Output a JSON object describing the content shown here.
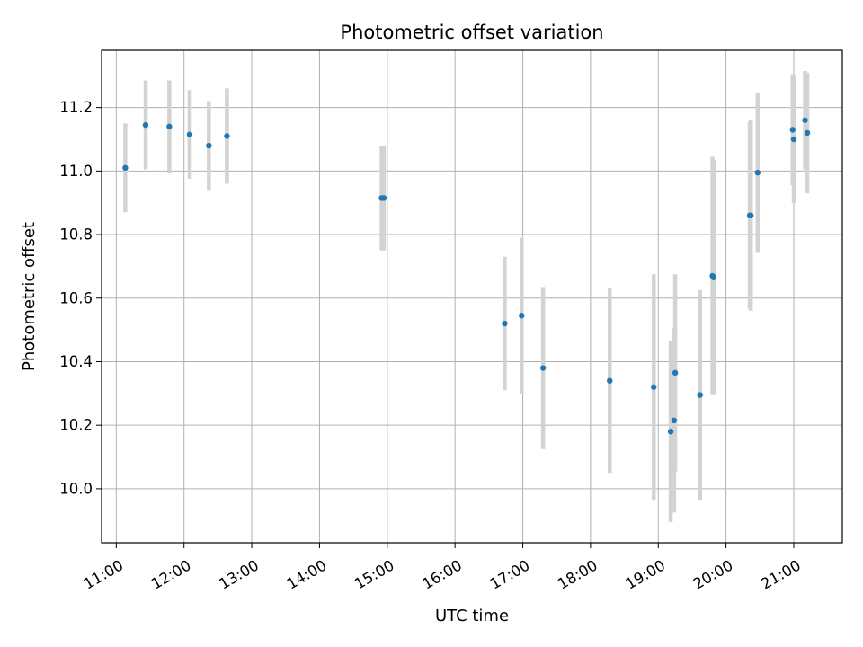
{
  "chart_data": {
    "type": "scatter",
    "title": "Photometric offset variation",
    "xlabel": "UTC time",
    "ylabel": "Photometric offset",
    "xlim": [
      "10:47",
      "21:43"
    ],
    "ylim": [
      9.83,
      11.38
    ],
    "x_ticks": [
      "11:00",
      "12:00",
      "13:00",
      "14:00",
      "15:00",
      "16:00",
      "17:00",
      "18:00",
      "19:00",
      "20:00",
      "21:00"
    ],
    "y_ticks": [
      "10.0",
      "10.2",
      "10.4",
      "10.6",
      "10.8",
      "11.0",
      "11.2"
    ],
    "grid": true,
    "marker_color": "#1f77b4",
    "errorbar_color": "#d3d3d3",
    "points": [
      {
        "x": "11:08",
        "y": 11.01,
        "err": 0.14
      },
      {
        "x": "11:26",
        "y": 11.145,
        "err": 0.14
      },
      {
        "x": "11:47",
        "y": 11.14,
        "err": 0.145
      },
      {
        "x": "12:05",
        "y": 11.115,
        "err": 0.14
      },
      {
        "x": "12:22",
        "y": 11.08,
        "err": 0.14
      },
      {
        "x": "12:38",
        "y": 11.11,
        "err": 0.15
      },
      {
        "x": "14:55",
        "y": 10.915,
        "err": 0.165
      },
      {
        "x": "14:57",
        "y": 10.915,
        "err": 0.165
      },
      {
        "x": "16:44",
        "y": 10.52,
        "err": 0.21
      },
      {
        "x": "16:59",
        "y": 10.545,
        "err": 0.245
      },
      {
        "x": "17:18",
        "y": 10.38,
        "err": 0.255
      },
      {
        "x": "18:17",
        "y": 10.34,
        "err": 0.29
      },
      {
        "x": "18:56",
        "y": 10.32,
        "err": 0.355
      },
      {
        "x": "19:11",
        "y": 10.18,
        "err": 0.285
      },
      {
        "x": "19:14",
        "y": 10.215,
        "err": 0.29
      },
      {
        "x": "19:15",
        "y": 10.365,
        "err": 0.31
      },
      {
        "x": "19:37",
        "y": 10.295,
        "err": 0.33
      },
      {
        "x": "19:48",
        "y": 10.67,
        "err": 0.375
      },
      {
        "x": "19:49",
        "y": 10.665,
        "err": 0.37
      },
      {
        "x": "20:21",
        "y": 10.86,
        "err": 0.295
      },
      {
        "x": "20:22",
        "y": 10.86,
        "err": 0.3
      },
      {
        "x": "20:28",
        "y": 10.995,
        "err": 0.25
      },
      {
        "x": "20:59",
        "y": 11.13,
        "err": 0.175
      },
      {
        "x": "21:00",
        "y": 11.1,
        "err": 0.2
      },
      {
        "x": "21:10",
        "y": 11.16,
        "err": 0.155
      },
      {
        "x": "21:12",
        "y": 11.12,
        "err": 0.19
      }
    ]
  }
}
